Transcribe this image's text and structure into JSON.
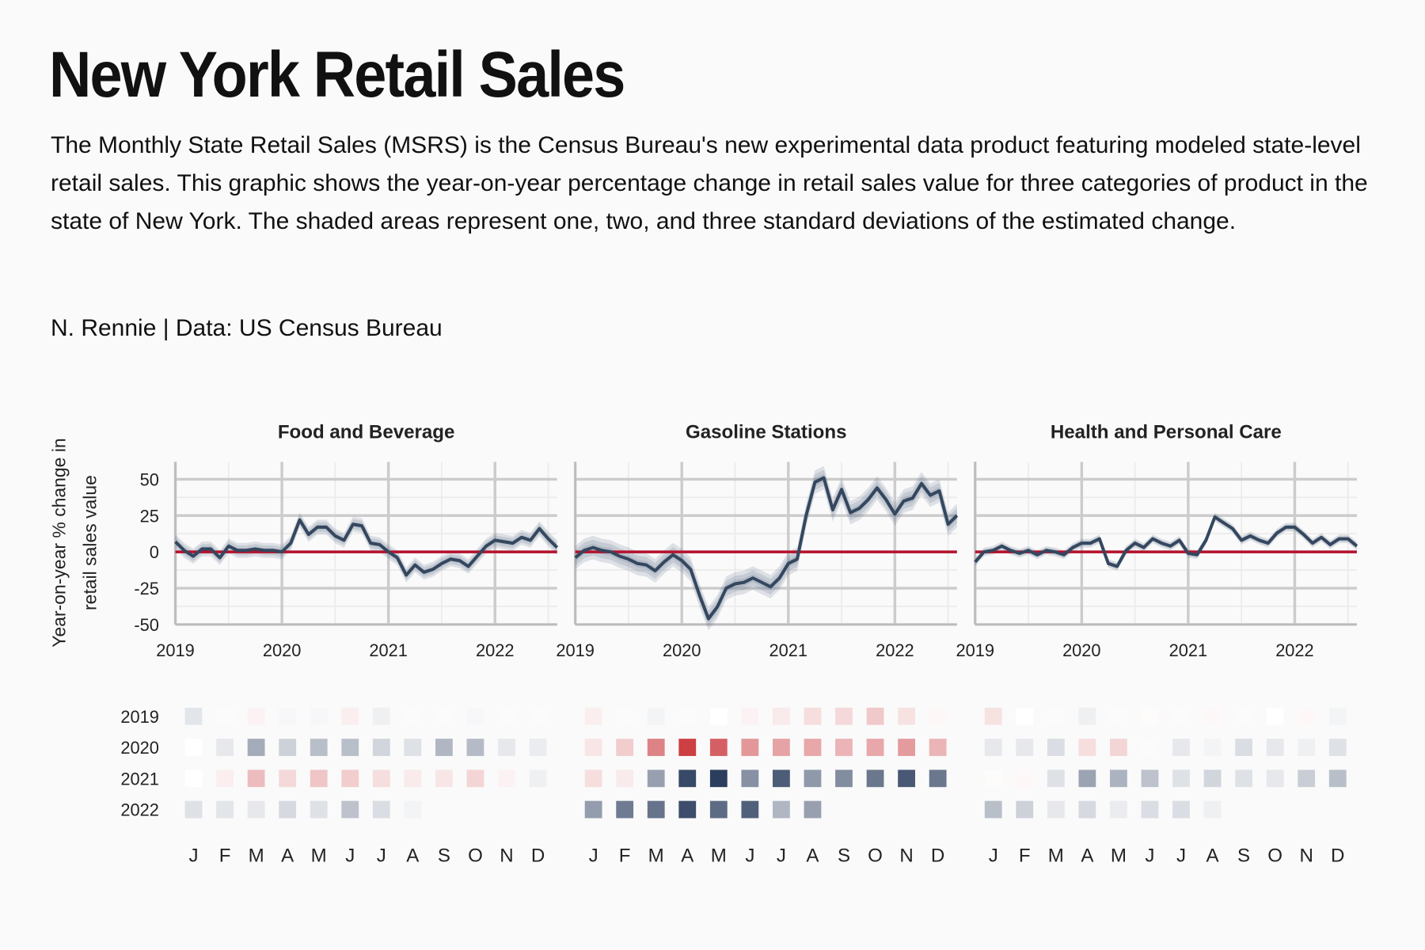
{
  "chart_data": {
    "type": "line",
    "title": "New York Retail Sales",
    "subtitle": "The Monthly State Retail Sales (MSRS) is the Census Bureau's new experimental data product featuring modeled state-level retail sales. This graphic shows the year-on-year percentage change in retail sales value for three categories of product in the state of New York. The shaded areas represent one, two, and three standard deviations of the estimated change.",
    "caption": "N. Rennie | Data: US Census Bureau",
    "ylabel": [
      "Year-on-year % change in",
      "retail sales value"
    ],
    "x": [
      2019,
      2019.083,
      2019.167,
      2019.25,
      2019.333,
      2019.417,
      2019.5,
      2019.583,
      2019.667,
      2019.75,
      2019.833,
      2019.917,
      2020,
      2020.083,
      2020.167,
      2020.25,
      2020.333,
      2020.417,
      2020.5,
      2020.583,
      2020.667,
      2020.75,
      2020.833,
      2020.917,
      2021,
      2021.083,
      2021.167,
      2021.25,
      2021.333,
      2021.417,
      2021.5,
      2021.583,
      2021.667,
      2021.75,
      2021.833,
      2021.917,
      2022,
      2022.083,
      2022.167,
      2022.25,
      2022.333,
      2022.417,
      2022.5,
      2022.583
    ],
    "xlim": [
      2019,
      2022.583
    ],
    "xticks": [
      2019,
      2020,
      2021,
      2022
    ],
    "ylim": [
      -50,
      62
    ],
    "yticks": [
      -50,
      -25,
      0,
      25,
      50
    ],
    "hline": 0,
    "grid": true,
    "line_color": "#34475f",
    "band_color": "#6b7a93",
    "hline_color": "#b5122e",
    "positive_color": "#2c3e5e",
    "negative_color": "#c62a2f",
    "heatmap_rows": [
      "2019",
      "2020",
      "2021",
      "2022"
    ],
    "heatmap_columns": [
      "J",
      "F",
      "M",
      "A",
      "M",
      "J",
      "J",
      "A",
      "S",
      "O",
      "N",
      "D"
    ],
    "series": [
      {
        "name": "Food and Beverage",
        "sd": 1.7,
        "values": [
          7,
          1,
          -3,
          2,
          2,
          -4,
          4,
          1,
          1,
          2,
          1,
          1,
          0,
          6,
          22,
          12,
          17,
          17,
          11,
          8,
          19,
          18,
          6,
          5,
          0,
          -4,
          -16,
          -9,
          -14,
          -12,
          -8,
          -5,
          -6,
          -10,
          -3,
          4,
          8,
          7,
          6,
          10,
          8,
          16,
          9,
          3
        ]
      },
      {
        "name": "Gasoline Stations",
        "sd": 2.7,
        "values": [
          -4,
          1,
          3,
          1,
          0,
          -3,
          -5,
          -8,
          -9,
          -13,
          -7,
          -2,
          -6,
          -12,
          -30,
          -46,
          -38,
          -25,
          -22,
          -21,
          -18,
          -21,
          -24,
          -18,
          -8,
          -5,
          25,
          48,
          51,
          29,
          43,
          27,
          30,
          36,
          44,
          36,
          26,
          35,
          37,
          47,
          39,
          42,
          19,
          25
        ]
      },
      {
        "name": "Health and Personal Care",
        "sd": 1,
        "values": [
          -7,
          0,
          1,
          4,
          1,
          -1,
          1,
          -2,
          1,
          0,
          -2,
          3,
          6,
          6,
          9,
          -8,
          -10,
          1,
          6,
          3,
          9,
          6,
          4,
          8,
          -1,
          -2,
          8,
          24,
          20,
          16,
          8,
          11,
          8,
          6,
          13,
          17,
          17,
          12,
          6,
          10,
          5,
          9,
          9,
          4
        ]
      }
    ]
  }
}
